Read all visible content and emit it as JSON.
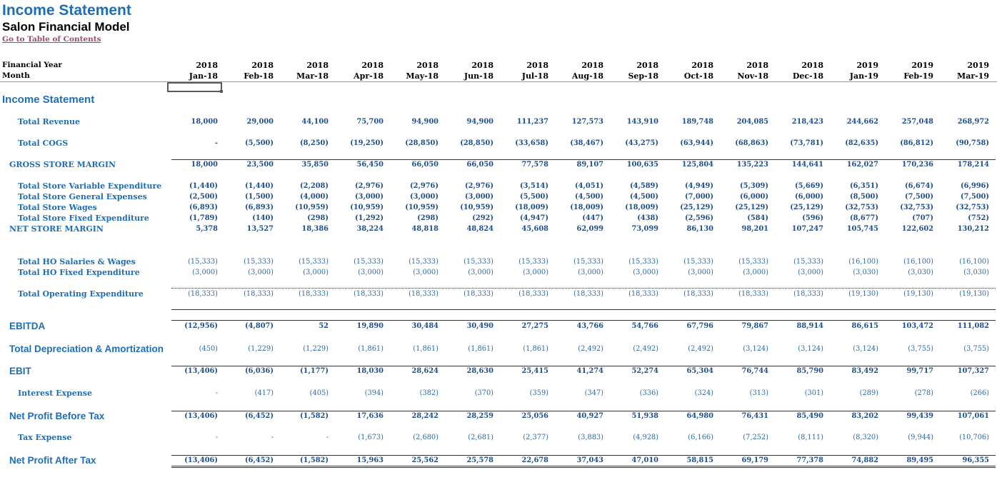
{
  "header": {
    "title": "Income Statement",
    "subtitle": "Salon Financial Model",
    "toc_link": "Go to Table of Contents"
  },
  "columns": {
    "year_label": "Financial Year",
    "month_label": "Month",
    "years": [
      "2018",
      "2018",
      "2018",
      "2018",
      "2018",
      "2018",
      "2018",
      "2018",
      "2018",
      "2018",
      "2018",
      "2018",
      "2019",
      "2019",
      "2019"
    ],
    "months": [
      "Jan-18",
      "Feb-18",
      "Mar-18",
      "Apr-18",
      "May-18",
      "Jun-18",
      "Jul-18",
      "Aug-18",
      "Sep-18",
      "Oct-18",
      "Nov-18",
      "Dec-18",
      "Jan-19",
      "Feb-19",
      "Mar-19"
    ]
  },
  "section_title": "Income Statement",
  "rows": [
    {
      "label": "Total Revenue",
      "values": [
        "18,000",
        "29,000",
        "44,100",
        "75,700",
        "94,900",
        "94,900",
        "111,237",
        "127,573",
        "143,910",
        "189,748",
        "204,085",
        "218,423",
        "244,662",
        "257,048",
        "268,972"
      ]
    },
    {
      "label": "Total COGS",
      "values": [
        "-",
        "(5,500)",
        "(8,250)",
        "(19,250)",
        "(28,850)",
        "(28,850)",
        "(33,658)",
        "(38,467)",
        "(43,275)",
        "(63,944)",
        "(68,863)",
        "(73,781)",
        "(82,635)",
        "(86,812)",
        "(90,758)"
      ]
    },
    {
      "label": "GROSS STORE MARGIN",
      "values": [
        "18,000",
        "23,500",
        "35,850",
        "56,450",
        "66,050",
        "66,050",
        "77,578",
        "89,107",
        "100,635",
        "125,804",
        "135,223",
        "144,641",
        "162,027",
        "170,236",
        "178,214"
      ]
    },
    {
      "label": "Total Store Variable Expenditure",
      "values": [
        "(1,440)",
        "(1,440)",
        "(2,208)",
        "(2,976)",
        "(2,976)",
        "(2,976)",
        "(3,514)",
        "(4,051)",
        "(4,589)",
        "(4,949)",
        "(5,309)",
        "(5,669)",
        "(6,351)",
        "(6,674)",
        "(6,996)"
      ]
    },
    {
      "label": "Total Store General Expenses",
      "values": [
        "(2,500)",
        "(1,500)",
        "(4,000)",
        "(3,000)",
        "(3,000)",
        "(3,000)",
        "(5,500)",
        "(4,500)",
        "(4,500)",
        "(7,000)",
        "(6,000)",
        "(6,000)",
        "(8,500)",
        "(7,500)",
        "(7,500)"
      ]
    },
    {
      "label": "Total Store Wages",
      "values": [
        "(6,893)",
        "(6,893)",
        "(10,959)",
        "(10,959)",
        "(10,959)",
        "(10,959)",
        "(18,009)",
        "(18,009)",
        "(18,009)",
        "(25,129)",
        "(25,129)",
        "(25,129)",
        "(32,753)",
        "(32,753)",
        "(32,753)"
      ]
    },
    {
      "label": "Total Store Fixed Expenditure",
      "values": [
        "(1,789)",
        "(140)",
        "(298)",
        "(1,292)",
        "(298)",
        "(292)",
        "(4,947)",
        "(447)",
        "(438)",
        "(2,596)",
        "(584)",
        "(596)",
        "(8,677)",
        "(707)",
        "(752)"
      ]
    },
    {
      "label": "NET STORE MARGIN",
      "values": [
        "5,378",
        "13,527",
        "18,386",
        "38,224",
        "48,818",
        "48,824",
        "45,608",
        "62,099",
        "73,099",
        "86,130",
        "98,201",
        "107,247",
        "105,745",
        "122,602",
        "130,212"
      ]
    },
    {
      "label": "Total HO Salaries & Wages",
      "values": [
        "(15,333)",
        "(15,333)",
        "(15,333)",
        "(15,333)",
        "(15,333)",
        "(15,333)",
        "(15,333)",
        "(15,333)",
        "(15,333)",
        "(15,333)",
        "(15,333)",
        "(15,333)",
        "(16,100)",
        "(16,100)",
        "(16,100)"
      ]
    },
    {
      "label": "Total HO Fixed Expenditure",
      "values": [
        "(3,000)",
        "(3,000)",
        "(3,000)",
        "(3,000)",
        "(3,000)",
        "(3,000)",
        "(3,000)",
        "(3,000)",
        "(3,000)",
        "(3,000)",
        "(3,000)",
        "(3,000)",
        "(3,030)",
        "(3,030)",
        "(3,030)"
      ]
    },
    {
      "label": "Total Operating Expenditure",
      "values": [
        "(18,333)",
        "(18,333)",
        "(18,333)",
        "(18,333)",
        "(18,333)",
        "(18,333)",
        "(18,333)",
        "(18,333)",
        "(18,333)",
        "(18,333)",
        "(18,333)",
        "(18,333)",
        "(19,130)",
        "(19,130)",
        "(19,130)"
      ]
    },
    {
      "label": "EBITDA",
      "values": [
        "(12,956)",
        "(4,807)",
        "52",
        "19,890",
        "30,484",
        "30,490",
        "27,275",
        "43,766",
        "54,766",
        "67,796",
        "79,867",
        "88,914",
        "86,615",
        "103,472",
        "111,082"
      ]
    },
    {
      "label": "Total Depreciation & Amortization",
      "values": [
        "(450)",
        "(1,229)",
        "(1,229)",
        "(1,861)",
        "(1,861)",
        "(1,861)",
        "(1,861)",
        "(2,492)",
        "(2,492)",
        "(2,492)",
        "(3,124)",
        "(3,124)",
        "(3,124)",
        "(3,755)",
        "(3,755)"
      ]
    },
    {
      "label": "EBIT",
      "values": [
        "(13,406)",
        "(6,036)",
        "(1,177)",
        "18,030",
        "28,624",
        "28,630",
        "25,415",
        "41,274",
        "52,274",
        "65,304",
        "76,744",
        "85,790",
        "83,492",
        "99,717",
        "107,327"
      ]
    },
    {
      "label": "Interest Expense",
      "values": [
        "-",
        "(417)",
        "(405)",
        "(394)",
        "(382)",
        "(370)",
        "(359)",
        "(347)",
        "(336)",
        "(324)",
        "(313)",
        "(301)",
        "(289)",
        "(278)",
        "(266)"
      ]
    },
    {
      "label": "Net Profit Before Tax",
      "values": [
        "(13,406)",
        "(6,452)",
        "(1,582)",
        "17,636",
        "28,242",
        "28,259",
        "25,056",
        "40,927",
        "51,938",
        "64,980",
        "76,431",
        "85,490",
        "83,202",
        "99,439",
        "107,061"
      ]
    },
    {
      "label": "Tax Expense",
      "values": [
        "-",
        "-",
        "-",
        "(1,673)",
        "(2,680)",
        "(2,681)",
        "(2,377)",
        "(3,883)",
        "(4,928)",
        "(6,166)",
        "(7,252)",
        "(8,111)",
        "(8,320)",
        "(9,944)",
        "(10,706)"
      ]
    },
    {
      "label": "Net Profit After Tax",
      "values": [
        "(13,406)",
        "(6,452)",
        "(1,582)",
        "15,963",
        "25,562",
        "25,578",
        "22,678",
        "37,043",
        "47,010",
        "58,815",
        "69,179",
        "77,378",
        "74,882",
        "89,495",
        "96,355"
      ]
    }
  ],
  "colors": {
    "accent": "#1f6eb5",
    "link": "#9a4b6e"
  }
}
